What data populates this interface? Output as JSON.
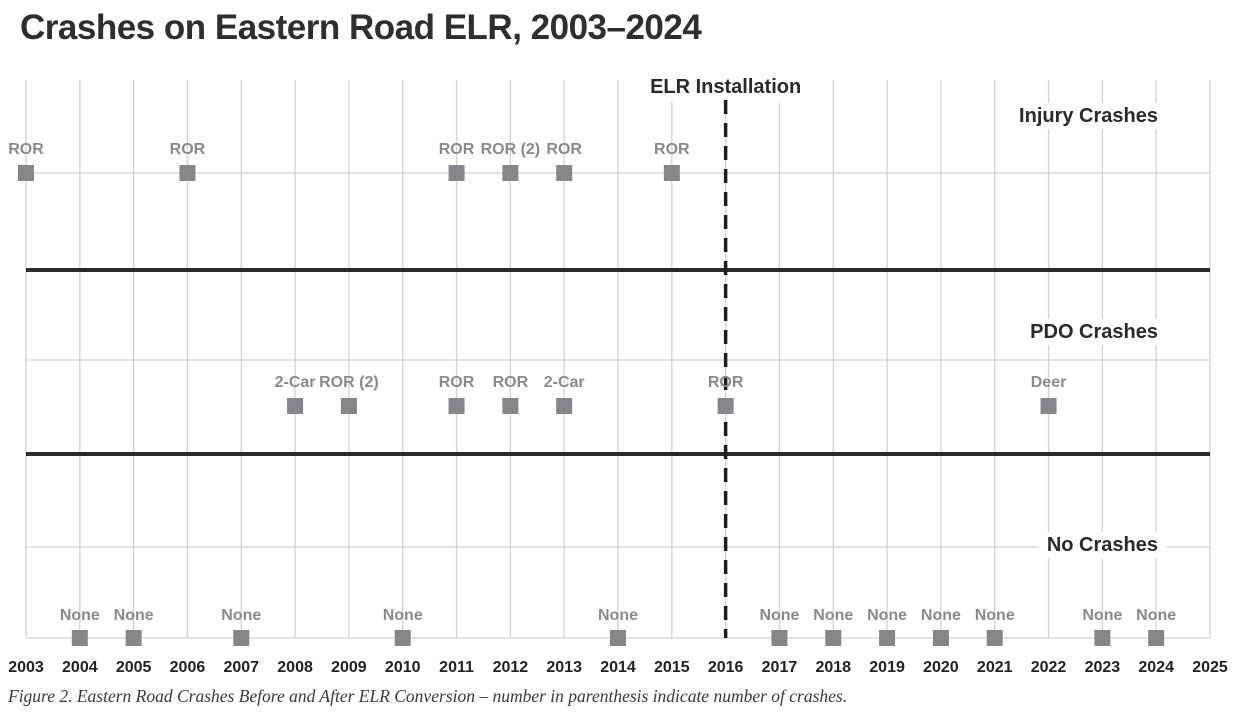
{
  "chart_data": {
    "type": "scatter",
    "title": "Crashes on Eastern Road ELR, 2003–2024",
    "caption": "Figure 2. Eastern Road Crashes Before and After ELR Conversion – number in parenthesis indicate number of crashes.",
    "xlabel": "",
    "ylabel": "",
    "x_ticks": [
      2003,
      2004,
      2005,
      2006,
      2007,
      2008,
      2009,
      2010,
      2011,
      2012,
      2013,
      2014,
      2015,
      2016,
      2017,
      2018,
      2019,
      2020,
      2021,
      2022,
      2023,
      2024,
      2025
    ],
    "xlim": [
      2003,
      2025
    ],
    "grid": true,
    "marker_color": "#86868a",
    "categories": [
      "Injury Crashes",
      "PDO Crashes",
      "No Crashes"
    ],
    "event": {
      "label": "ELR Installation",
      "year": 2016
    },
    "series": [
      {
        "name": "Injury Crashes",
        "points": [
          {
            "year": 2003,
            "label": "ROR"
          },
          {
            "year": 2006,
            "label": "ROR"
          },
          {
            "year": 2011,
            "label": "ROR"
          },
          {
            "year": 2012,
            "label": "ROR (2)"
          },
          {
            "year": 2013,
            "label": "ROR"
          },
          {
            "year": 2015,
            "label": "ROR"
          }
        ]
      },
      {
        "name": "PDO Crashes",
        "points": [
          {
            "year": 2008,
            "label": "2-Car"
          },
          {
            "year": 2009,
            "label": "ROR (2)"
          },
          {
            "year": 2011,
            "label": "ROR"
          },
          {
            "year": 2012,
            "label": "ROR"
          },
          {
            "year": 2013,
            "label": "2-Car"
          },
          {
            "year": 2016,
            "label": "ROR"
          },
          {
            "year": 2022,
            "label": "Deer"
          }
        ]
      },
      {
        "name": "No Crashes",
        "points": [
          {
            "year": 2004,
            "label": "None"
          },
          {
            "year": 2005,
            "label": "None"
          },
          {
            "year": 2007,
            "label": "None"
          },
          {
            "year": 2010,
            "label": "None"
          },
          {
            "year": 2014,
            "label": "None"
          },
          {
            "year": 2017,
            "label": "None"
          },
          {
            "year": 2018,
            "label": "None"
          },
          {
            "year": 2019,
            "label": "None"
          },
          {
            "year": 2020,
            "label": "None"
          },
          {
            "year": 2021,
            "label": "None"
          },
          {
            "year": 2023,
            "label": "None"
          },
          {
            "year": 2024,
            "label": "None"
          }
        ]
      }
    ]
  }
}
